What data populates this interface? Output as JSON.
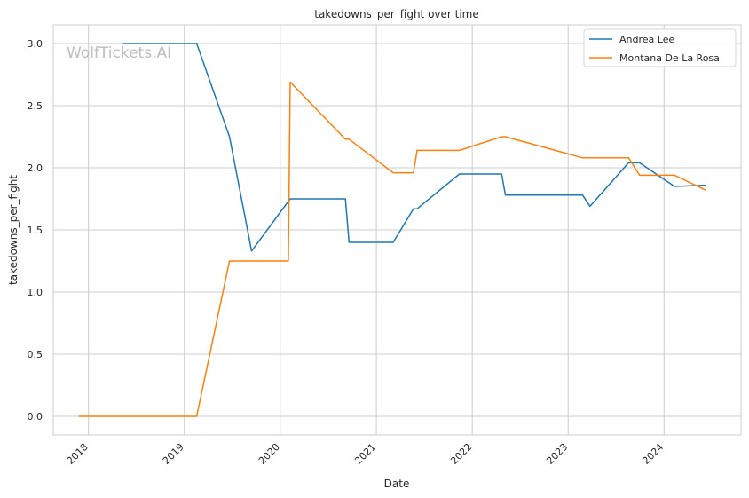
{
  "watermark": "WolfTickets.AI",
  "chart_data": {
    "type": "line",
    "title": "takedowns_per_fight over time",
    "xlabel": "Date",
    "ylabel": "takedowns_per_fight",
    "x_ticks": [
      "2018",
      "2019",
      "2020",
      "2021",
      "2022",
      "2023",
      "2024"
    ],
    "y_ticks": [
      "0.0",
      "0.5",
      "1.0",
      "1.5",
      "2.0",
      "2.5",
      "3.0"
    ],
    "xlim": [
      "2017-08-20",
      "2024-10-20"
    ],
    "ylim": [
      -0.15,
      3.15
    ],
    "grid": true,
    "legend_position": "top-right",
    "series": [
      {
        "name": "Andrea Lee",
        "color": "#1f77b4",
        "points": [
          [
            "2018-05-12",
            3.0
          ],
          [
            "2019-02-17",
            3.0
          ],
          [
            "2019-06-22",
            2.25
          ],
          [
            "2019-09-14",
            1.33
          ],
          [
            "2020-02-08",
            1.75
          ],
          [
            "2020-09-05",
            1.75
          ],
          [
            "2020-09-19",
            1.4
          ],
          [
            "2021-03-06",
            1.4
          ],
          [
            "2021-05-22",
            1.67
          ],
          [
            "2021-06-05",
            1.67
          ],
          [
            "2021-11-13",
            1.95
          ],
          [
            "2022-04-23",
            1.95
          ],
          [
            "2022-05-07",
            1.78
          ],
          [
            "2023-02-25",
            1.78
          ],
          [
            "2023-03-25",
            1.69
          ],
          [
            "2023-08-19",
            2.04
          ],
          [
            "2023-09-30",
            2.04
          ],
          [
            "2024-02-10",
            1.85
          ],
          [
            "2024-06-08",
            1.86
          ]
        ]
      },
      {
        "name": "Montana De La Rosa",
        "color": "#ff7f0e",
        "points": [
          [
            "2017-11-25",
            0.0
          ],
          [
            "2019-02-17",
            0.0
          ],
          [
            "2019-06-22",
            1.25
          ],
          [
            "2020-02-01",
            1.25
          ],
          [
            "2020-02-08",
            2.69
          ],
          [
            "2020-09-05",
            2.23
          ],
          [
            "2020-09-19",
            2.23
          ],
          [
            "2021-03-06",
            1.96
          ],
          [
            "2021-05-22",
            1.96
          ],
          [
            "2021-06-05",
            2.14
          ],
          [
            "2021-11-13",
            2.14
          ],
          [
            "2022-04-23",
            2.25
          ],
          [
            "2022-05-07",
            2.25
          ],
          [
            "2023-02-25",
            2.08
          ],
          [
            "2023-08-19",
            2.08
          ],
          [
            "2023-09-30",
            1.94
          ],
          [
            "2024-02-10",
            1.94
          ],
          [
            "2024-06-08",
            1.82
          ]
        ]
      }
    ]
  }
}
